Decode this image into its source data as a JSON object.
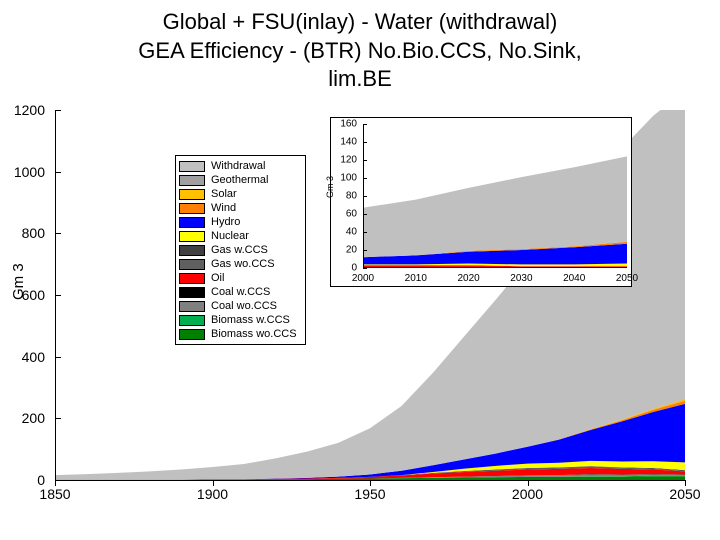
{
  "title": {
    "line1": "Global + FSU(inlay) - Water (withdrawal)",
    "line2": "GEA Efficiency - (BTR) No.Bio.CCS, No.Sink,",
    "line3": "lim.BE",
    "fontsize": 22,
    "color": "#000000"
  },
  "main_chart": {
    "type": "stacked_area",
    "ylabel": "Gm 3",
    "label_fontsize": 15,
    "xlim": [
      1850,
      2050
    ],
    "ylim": [
      0,
      1200
    ],
    "xticks": [
      1850,
      1900,
      1950,
      2000,
      2050
    ],
    "yticks": [
      0,
      200,
      400,
      600,
      800,
      1000,
      1200
    ],
    "background": "#ffffff",
    "axis_color": "#000000",
    "years": [
      1850,
      1860,
      1870,
      1880,
      1890,
      1900,
      1910,
      1920,
      1930,
      1940,
      1950,
      1960,
      1970,
      1980,
      1990,
      2000,
      2010,
      2020,
      2030,
      2040,
      2050
    ],
    "series": [
      {
        "name": "Biomass wo.CCS",
        "color": "#008000",
        "values": [
          1,
          1,
          1,
          1,
          1,
          2,
          2,
          3,
          3,
          4,
          5,
          6,
          7,
          8,
          9,
          10,
          10,
          11,
          11,
          12,
          12
        ]
      },
      {
        "name": "Biomass w.CCS",
        "color": "#00b050",
        "values": [
          0,
          0,
          0,
          0,
          0,
          0,
          0,
          0,
          0,
          0,
          0,
          0,
          0,
          0,
          0,
          0,
          0,
          1,
          1,
          2,
          2
        ]
      },
      {
        "name": "Coal wo.CCS",
        "color": "#808080",
        "values": [
          0,
          0,
          0,
          0,
          0,
          0,
          0,
          0,
          0,
          0,
          0,
          1,
          2,
          3,
          4,
          5,
          6,
          6,
          5,
          4,
          3
        ]
      },
      {
        "name": "Coal w.CCS",
        "color": "#000000",
        "values": [
          0,
          0,
          0,
          0,
          0,
          0,
          0,
          0,
          0,
          0,
          0,
          0,
          0,
          0,
          0,
          0,
          0,
          1,
          1,
          1,
          1
        ]
      },
      {
        "name": "Oil",
        "color": "#ff0000",
        "values": [
          0,
          0,
          0,
          0,
          0,
          0,
          0,
          1,
          2,
          3,
          5,
          8,
          12,
          15,
          17,
          19,
          20,
          20,
          18,
          15,
          10
        ]
      },
      {
        "name": "Gas wo.CCS",
        "color": "#606060",
        "values": [
          0,
          0,
          0,
          0,
          0,
          0,
          0,
          0,
          0,
          0,
          0,
          1,
          2,
          3,
          4,
          5,
          5,
          5,
          4,
          3,
          2
        ]
      },
      {
        "name": "Gas w.CCS",
        "color": "#404040",
        "values": [
          0,
          0,
          0,
          0,
          0,
          0,
          0,
          0,
          0,
          0,
          0,
          0,
          0,
          0,
          0,
          0,
          0,
          1,
          1,
          2,
          2
        ]
      },
      {
        "name": "Nuclear",
        "color": "#ffff00",
        "values": [
          0,
          0,
          0,
          0,
          0,
          0,
          0,
          0,
          0,
          0,
          0,
          0,
          3,
          8,
          12,
          14,
          15,
          17,
          19,
          22,
          25
        ]
      },
      {
        "name": "Hydro",
        "color": "#0000ff",
        "values": [
          0,
          0,
          0,
          0,
          0,
          0,
          0,
          1,
          2,
          4,
          8,
          14,
          22,
          30,
          40,
          55,
          75,
          100,
          130,
          160,
          190
        ]
      },
      {
        "name": "Wind",
        "color": "#ff8000",
        "values": [
          0,
          0,
          0,
          0,
          0,
          0,
          0,
          0,
          0,
          0,
          0,
          0,
          0,
          0,
          0,
          0,
          1,
          2,
          4,
          7,
          10
        ]
      },
      {
        "name": "Solar",
        "color": "#ffc000",
        "values": [
          0,
          0,
          0,
          0,
          0,
          0,
          0,
          0,
          0,
          0,
          0,
          0,
          0,
          0,
          0,
          0,
          0,
          1,
          2,
          3,
          5
        ]
      },
      {
        "name": "Geothermal",
        "color": "#a0a0a0",
        "values": [
          0,
          0,
          0,
          0,
          0,
          0,
          0,
          0,
          0,
          0,
          0,
          0,
          0,
          0,
          0,
          0,
          0,
          0,
          0,
          1,
          1
        ]
      },
      {
        "name": "Withdrawal",
        "color": "#c0c0c0",
        "values": [
          15,
          18,
          22,
          27,
          33,
          40,
          50,
          65,
          85,
          110,
          150,
          210,
          300,
          400,
          500,
          600,
          700,
          800,
          880,
          950,
          1000
        ]
      }
    ]
  },
  "inset_chart": {
    "type": "stacked_area",
    "ylabel": "Gm 3",
    "xlim": [
      2000,
      2050
    ],
    "ylim": [
      0,
      160
    ],
    "xticks": [
      2000,
      2010,
      2020,
      2030,
      2040,
      2050
    ],
    "yticks": [
      0,
      20,
      40,
      60,
      80,
      100,
      120,
      140,
      160
    ],
    "years": [
      2000,
      2010,
      2020,
      2030,
      2040,
      2050
    ],
    "series": [
      {
        "name": "Biomass wo.CCS",
        "color": "#008000",
        "values": [
          1,
          1,
          1,
          1,
          1,
          1
        ]
      },
      {
        "name": "Oil",
        "color": "#ff0000",
        "values": [
          2,
          2,
          2,
          1,
          1,
          1
        ]
      },
      {
        "name": "Nuclear",
        "color": "#ffff00",
        "values": [
          1,
          1,
          2,
          2,
          2,
          3
        ]
      },
      {
        "name": "Hydro",
        "color": "#0000ff",
        "values": [
          8,
          10,
          13,
          16,
          19,
          22
        ]
      },
      {
        "name": "Wind",
        "color": "#ff8000",
        "values": [
          0,
          0,
          1,
          1,
          1,
          2
        ]
      },
      {
        "name": "Withdrawal",
        "color": "#c0c0c0",
        "values": [
          55,
          62,
          70,
          80,
          88,
          95
        ]
      }
    ]
  },
  "legend": {
    "items": [
      {
        "label": "Withdrawal",
        "color": "#c0c0c0"
      },
      {
        "label": "Geothermal",
        "color": "#a0a0a0"
      },
      {
        "label": "Solar",
        "color": "#ffc000"
      },
      {
        "label": "Wind",
        "color": "#ff8000"
      },
      {
        "label": "Hydro",
        "color": "#0000ff"
      },
      {
        "label": "Nuclear",
        "color": "#ffff00"
      },
      {
        "label": "Gas w.CCS",
        "color": "#404040"
      },
      {
        "label": "Gas wo.CCS",
        "color": "#606060"
      },
      {
        "label": "Oil",
        "color": "#ff0000"
      },
      {
        "label": "Coal w.CCS",
        "color": "#000000"
      },
      {
        "label": "Coal wo.CCS",
        "color": "#808080"
      },
      {
        "label": "Biomass w.CCS",
        "color": "#00b050"
      },
      {
        "label": "Biomass wo.CCS",
        "color": "#008000"
      }
    ]
  }
}
